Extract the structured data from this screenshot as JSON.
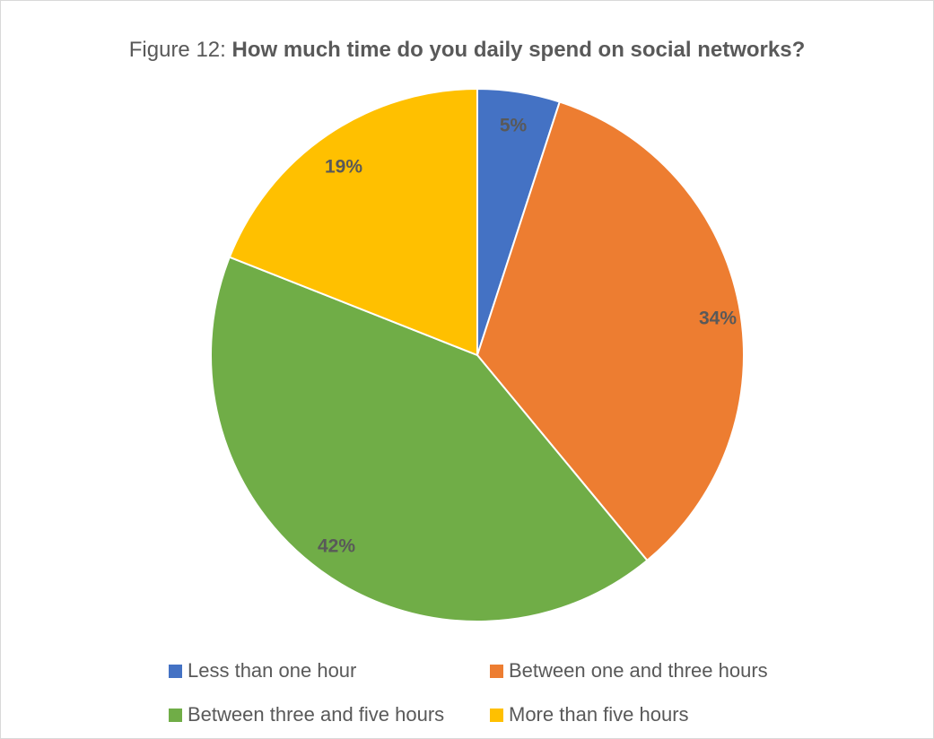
{
  "chart_data": {
    "type": "pie",
    "title_prefix": "Figure 12: ",
    "title_main": "How much time do you daily spend on social networks?",
    "slices": [
      {
        "label": "Less than one hour",
        "value": 5,
        "display": "5%",
        "color": "#4472C4"
      },
      {
        "label": "Between one and three hours",
        "value": 34,
        "display": "34%",
        "color": "#ED7D31"
      },
      {
        "label": "Between three and five hours",
        "value": 42,
        "display": "42%",
        "color": "#70AD47"
      },
      {
        "label": "More than five hours",
        "value": 19,
        "display": "19%",
        "color": "#FFC000"
      }
    ],
    "legend_position": "bottom"
  }
}
